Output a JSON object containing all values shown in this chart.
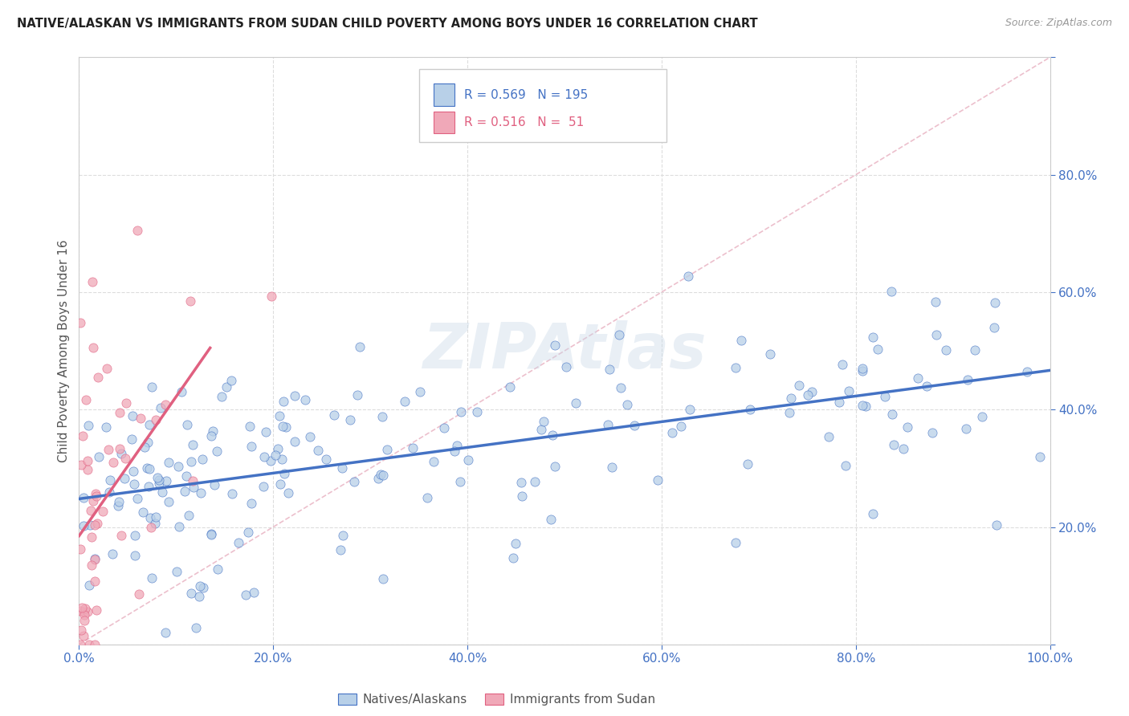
{
  "title": "NATIVE/ALASKAN VS IMMIGRANTS FROM SUDAN CHILD POVERTY AMONG BOYS UNDER 16 CORRELATION CHART",
  "source": "Source: ZipAtlas.com",
  "ylabel": "Child Poverty Among Boys Under 16",
  "blue_color": "#b8d0e8",
  "pink_color": "#f0a8b8",
  "blue_line_color": "#4472c4",
  "pink_line_color": "#e06080",
  "blue_R": 0.569,
  "blue_N": 195,
  "pink_R": 0.516,
  "pink_N": 51,
  "watermark": "ZIPAtlas",
  "legend_label_blue": "Natives/Alaskans",
  "legend_label_pink": "Immigrants from Sudan",
  "title_color": "#222222",
  "tick_color": "#4472c4",
  "grid_color": "#dddddd"
}
